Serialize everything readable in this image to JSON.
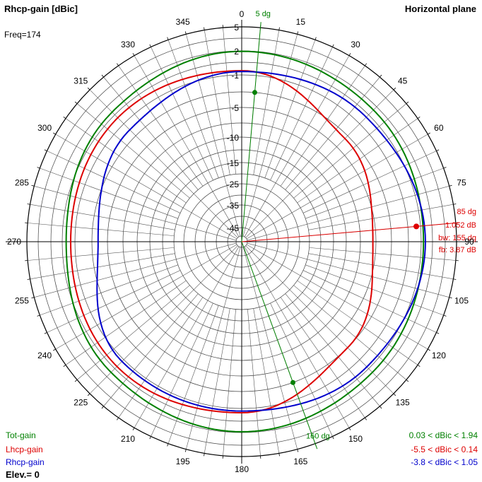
{
  "header": {
    "title": "Rhcp-gain [dBic]",
    "plane": "Horizontal plane",
    "freq": "Freq=174"
  },
  "footer": {
    "legend": [
      {
        "name": "Tot-gain",
        "range": "0.03 < dBic < 1.94",
        "color": "#008000"
      },
      {
        "name": "Lhcp-gain",
        "range": "-5.5 < dBic < 0.14",
        "color": "#dd0000"
      },
      {
        "name": "Rhcp-gain",
        "range": "-3.8 < dBic < 1.05",
        "color": "#0000cc"
      }
    ],
    "elev": "Elev.= 0"
  },
  "chart_data": {
    "type": "polar",
    "title": "Rhcp-gain [dBic]",
    "angle_ticks": [
      0,
      15,
      30,
      45,
      60,
      75,
      90,
      105,
      120,
      135,
      150,
      165,
      180,
      195,
      210,
      225,
      240,
      255,
      270,
      285,
      300,
      315,
      330,
      345
    ],
    "radial_ticks": [
      "5",
      "2",
      "-1",
      "-5",
      "-10",
      "-15",
      "-25",
      "-35",
      "-45"
    ],
    "radial_levels": [
      5,
      3.5,
      2,
      0.5,
      -1,
      -3,
      -5,
      -7.5,
      -10,
      -12.5,
      -15,
      -20,
      -25,
      -30,
      -35,
      -40,
      -45,
      -50
    ],
    "series": [
      {
        "name": "Tot-gain",
        "color": "#008000",
        "angles": [
          0,
          45,
          90,
          135,
          180,
          225,
          270,
          315
        ],
        "values": [
          1.94,
          1.4,
          0.8,
          1.2,
          1.9,
          1.2,
          0.03,
          1.0
        ]
      },
      {
        "name": "Lhcp-gain",
        "color": "#dd0000",
        "angles": [
          0,
          45,
          90,
          135,
          180,
          225,
          270,
          315
        ],
        "values": [
          -0.5,
          -3.5,
          -5.5,
          -3.0,
          -0.5,
          0.14,
          -0.5,
          0.0
        ]
      },
      {
        "name": "Rhcp-gain",
        "color": "#0000cc",
        "angles": [
          0,
          45,
          90,
          135,
          180,
          225,
          270,
          315
        ],
        "values": [
          -0.6,
          0.1,
          1.05,
          0.2,
          -0.7,
          -0.7,
          -3.8,
          -2.0
        ]
      }
    ],
    "markers": [
      {
        "angle": 5,
        "label": "5 dg",
        "color": "#008000"
      },
      {
        "angle": 160,
        "label": "160 dg",
        "color": "#008000"
      },
      {
        "angle": 85,
        "label": "85 dg",
        "color": "#dd0000"
      }
    ],
    "annotations": {
      "gain": "1.052 dB",
      "bw": "bw: 155 dg",
      "fb": "fb: 3.87 dB"
    }
  }
}
